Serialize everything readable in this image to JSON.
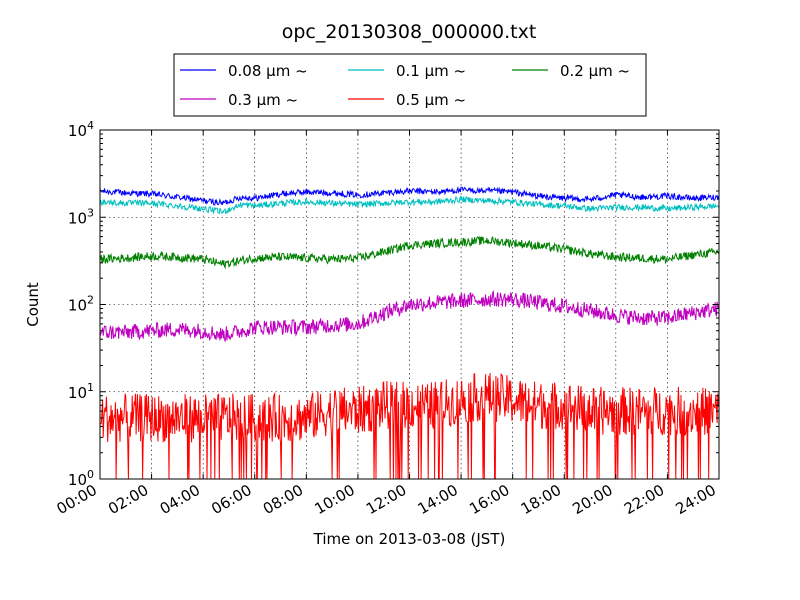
{
  "chart_data": {
    "type": "line",
    "title": "opc_20130308_000000.txt",
    "xlabel": "Time on 2013-03-08 (JST)",
    "ylabel": "Count",
    "xlim": [
      "00:00",
      "24:00"
    ],
    "ylim": [
      1,
      10000
    ],
    "yscale": "log",
    "grid": true,
    "legend_position": "top, above plot",
    "x_ticks": [
      "00:00",
      "02:00",
      "04:00",
      "06:00",
      "08:00",
      "10:00",
      "12:00",
      "14:00",
      "16:00",
      "18:00",
      "20:00",
      "22:00",
      "24:00"
    ],
    "y_ticks": [
      {
        "value": 1,
        "base": "10",
        "exp": "0"
      },
      {
        "value": 10,
        "base": "10",
        "exp": "1"
      },
      {
        "value": 100,
        "base": "10",
        "exp": "2"
      },
      {
        "value": 1000,
        "base": "10",
        "exp": "3"
      },
      {
        "value": 10000,
        "base": "10",
        "exp": "4"
      }
    ],
    "series": [
      {
        "name": "0.08 μm ~",
        "color": "#0000ff",
        "x": [
          "00:00",
          "01:00",
          "02:00",
          "03:00",
          "04:00",
          "04:45",
          "05:30",
          "06:00",
          "07:00",
          "08:00",
          "09:00",
          "10:00",
          "11:00",
          "12:00",
          "13:00",
          "14:00",
          "15:00",
          "16:00",
          "17:00",
          "18:00",
          "19:00",
          "20:00",
          "21:00",
          "22:00",
          "23:00",
          "24:00"
        ],
        "values": [
          2000,
          1900,
          1850,
          1700,
          1550,
          1450,
          1700,
          1650,
          1850,
          1950,
          1900,
          1800,
          1900,
          2000,
          1950,
          2050,
          2000,
          1950,
          1750,
          1650,
          1600,
          1800,
          1700,
          1750,
          1650,
          1700
        ]
      },
      {
        "name": "0.1 μm ~",
        "color": "#00bfbf",
        "x": [
          "00:00",
          "01:00",
          "02:00",
          "03:00",
          "04:00",
          "04:45",
          "05:30",
          "06:00",
          "07:00",
          "08:00",
          "09:00",
          "10:00",
          "11:00",
          "12:00",
          "13:00",
          "14:00",
          "15:00",
          "16:00",
          "17:00",
          "18:00",
          "19:00",
          "20:00",
          "21:00",
          "22:00",
          "23:00",
          "24:00"
        ],
        "values": [
          1500,
          1450,
          1450,
          1350,
          1250,
          1150,
          1400,
          1350,
          1450,
          1500,
          1450,
          1400,
          1450,
          1500,
          1500,
          1600,
          1550,
          1500,
          1400,
          1350,
          1250,
          1300,
          1300,
          1250,
          1300,
          1350
        ]
      },
      {
        "name": "0.2 μm ~",
        "color": "#008000",
        "x": [
          "00:00",
          "01:00",
          "02:00",
          "03:00",
          "04:00",
          "04:45",
          "05:30",
          "06:00",
          "07:00",
          "08:00",
          "09:00",
          "10:00",
          "11:00",
          "12:00",
          "13:00",
          "14:00",
          "15:00",
          "16:00",
          "17:00",
          "18:00",
          "19:00",
          "20:00",
          "21:00",
          "22:00",
          "23:00",
          "24:00"
        ],
        "values": [
          330,
          340,
          360,
          350,
          330,
          290,
          320,
          340,
          350,
          340,
          330,
          340,
          400,
          480,
          500,
          520,
          540,
          510,
          470,
          430,
          380,
          350,
          340,
          330,
          370,
          400
        ]
      },
      {
        "name": "0.3 μm ~",
        "color": "#bf00bf",
        "x": [
          "00:00",
          "01:00",
          "02:00",
          "03:00",
          "04:00",
          "04:45",
          "05:30",
          "06:00",
          "07:00",
          "08:00",
          "09:00",
          "10:00",
          "11:00",
          "12:00",
          "13:00",
          "14:00",
          "15:00",
          "16:00",
          "17:00",
          "18:00",
          "19:00",
          "20:00",
          "21:00",
          "22:00",
          "23:00",
          "24:00"
        ],
        "values": [
          48,
          48,
          50,
          52,
          50,
          45,
          50,
          55,
          55,
          55,
          58,
          60,
          80,
          100,
          105,
          110,
          115,
          115,
          105,
          95,
          85,
          75,
          70,
          70,
          80,
          90
        ]
      },
      {
        "name": "0.5 μm ~",
        "color": "#ff0000",
        "x": [
          "00:00",
          "01:00",
          "02:00",
          "03:00",
          "04:00",
          "04:45",
          "05:30",
          "06:00",
          "07:00",
          "08:00",
          "09:00",
          "10:00",
          "11:00",
          "12:00",
          "13:00",
          "14:00",
          "15:00",
          "16:00",
          "17:00",
          "18:00",
          "19:00",
          "20:00",
          "21:00",
          "22:00",
          "23:00",
          "24:00"
        ],
        "values": [
          5,
          5,
          5,
          5,
          5,
          5,
          5,
          5,
          5,
          5,
          6,
          6,
          7,
          7,
          7,
          8,
          9,
          8,
          7,
          7,
          6,
          6,
          6,
          6,
          6,
          6
        ]
      }
    ]
  }
}
